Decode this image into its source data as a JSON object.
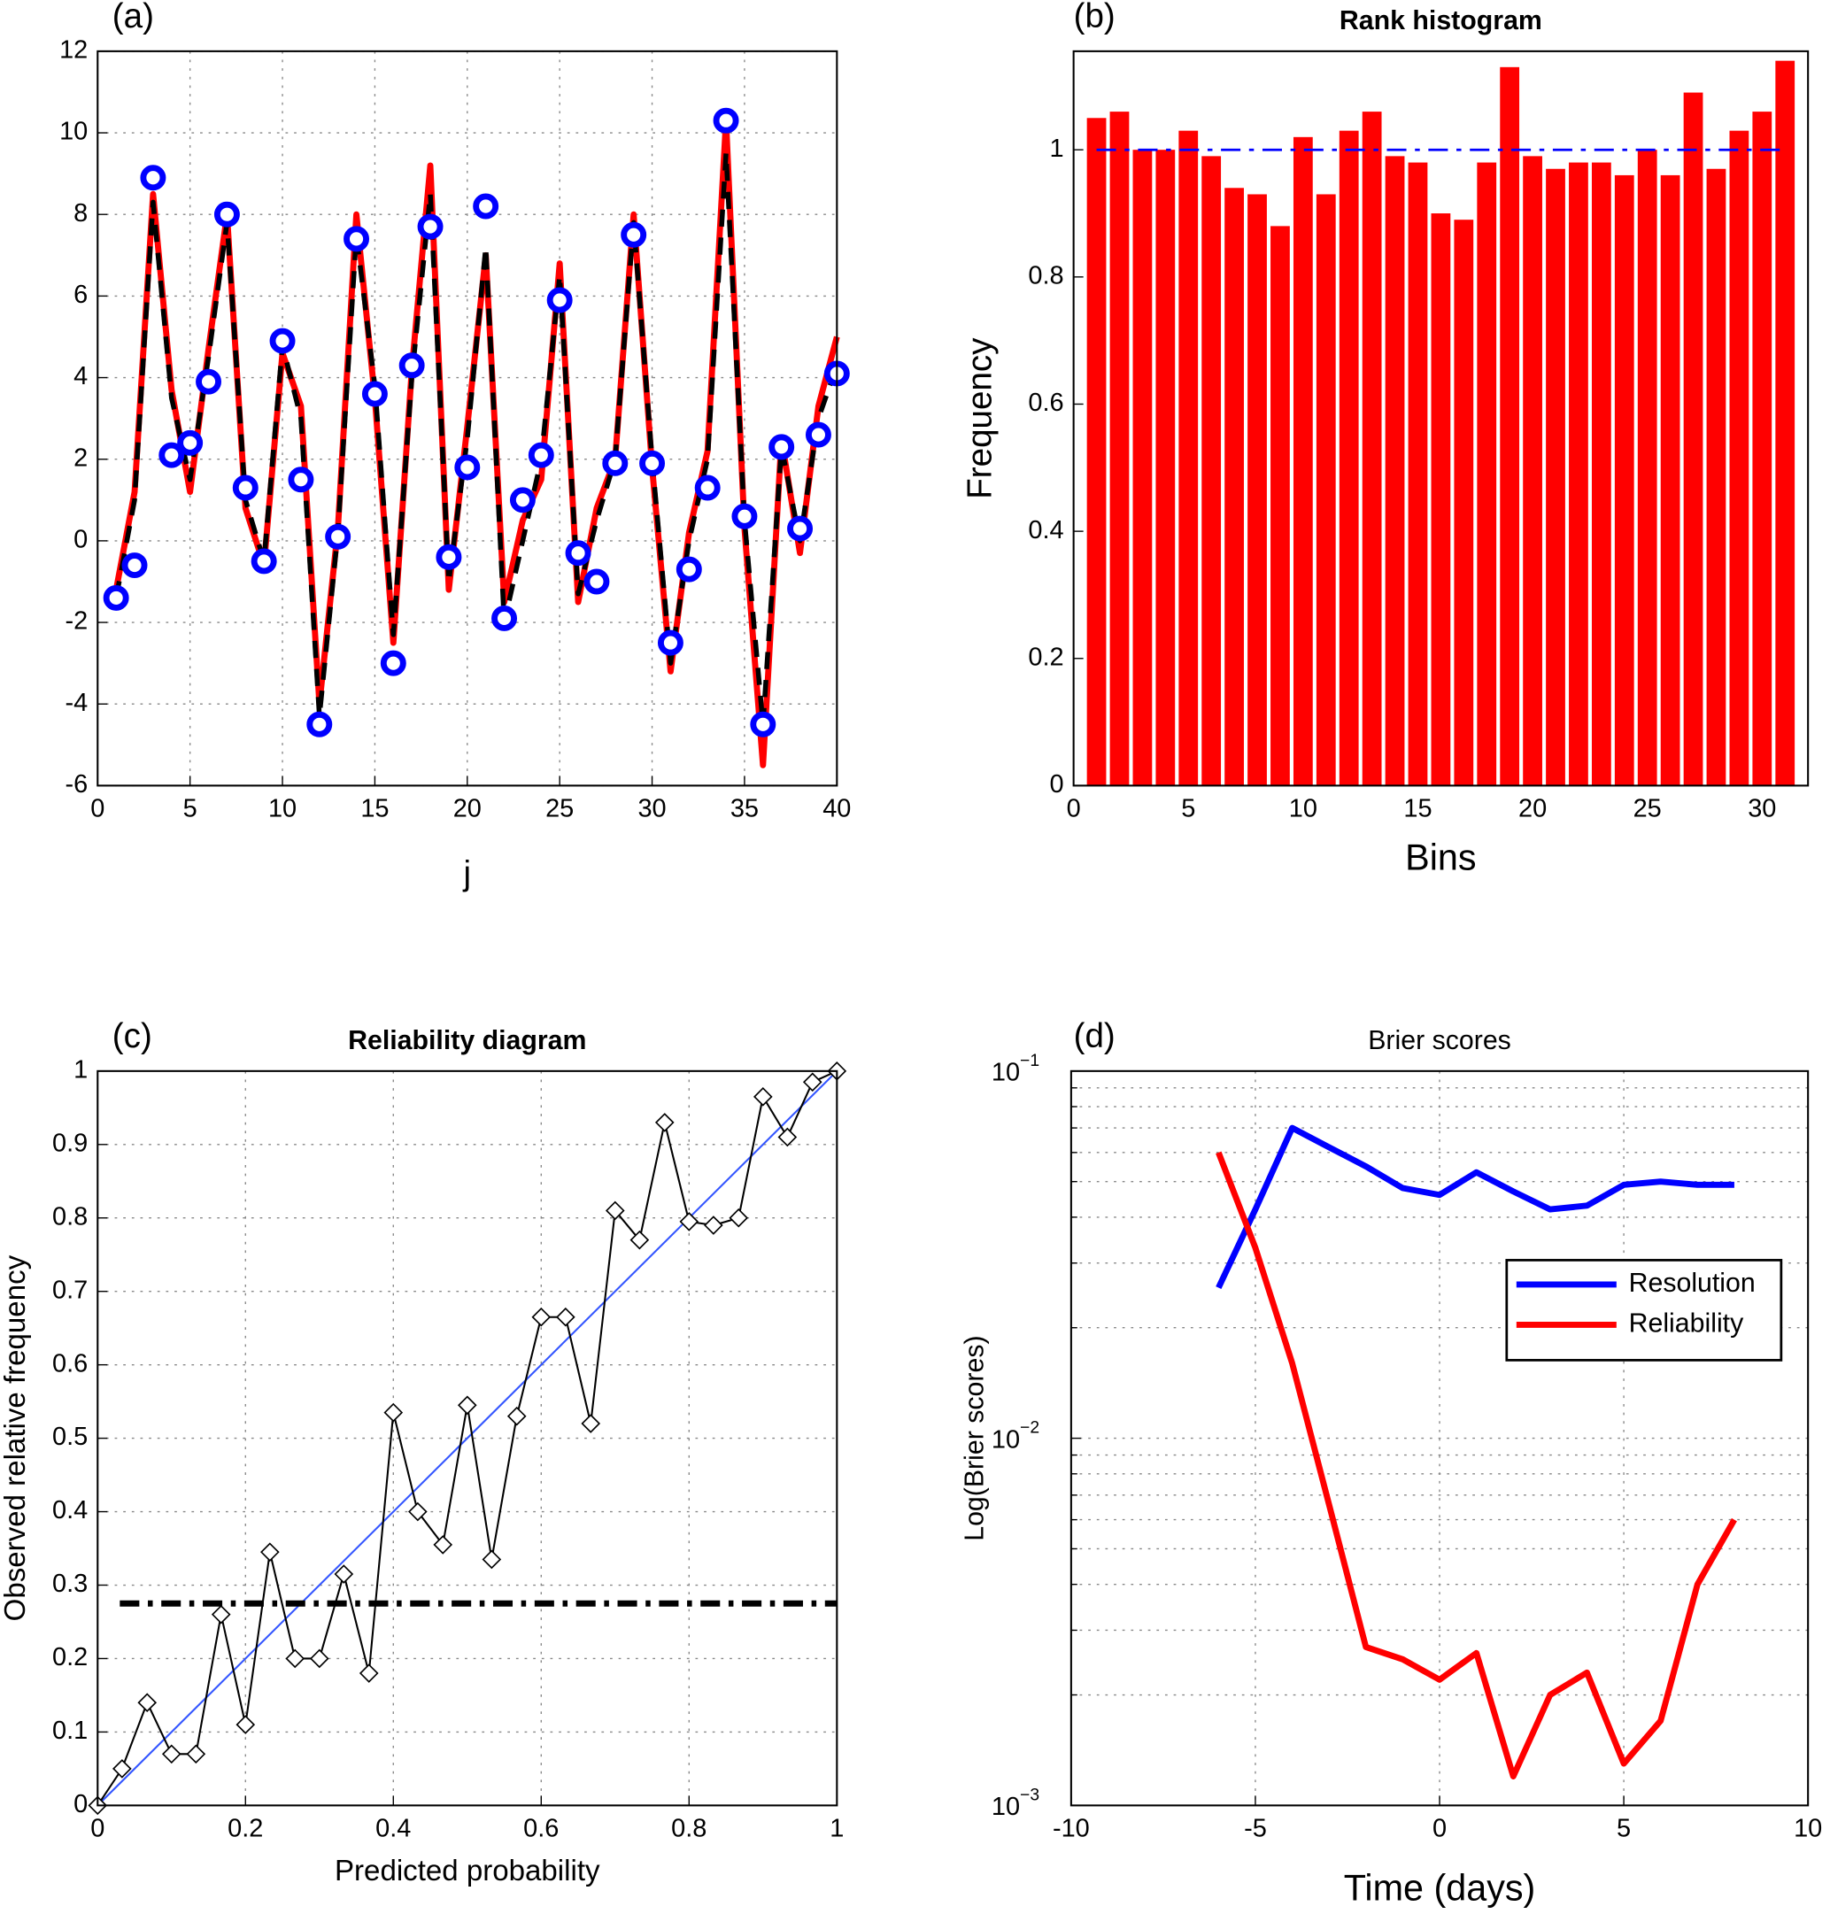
{
  "chart_data": [
    {
      "type": "line",
      "panel_label": "(a)",
      "xlabel": "j",
      "xlim": [
        0,
        40
      ],
      "ylim": [
        -6,
        12
      ],
      "xticks": [
        0,
        5,
        10,
        15,
        20,
        25,
        30,
        35,
        40
      ],
      "yticks": [
        -6,
        -4,
        -2,
        0,
        2,
        4,
        6,
        8,
        10,
        12
      ],
      "grid": true,
      "x": [
        1,
        2,
        3,
        4,
        5,
        6,
        7,
        8,
        9,
        10,
        11,
        12,
        13,
        14,
        15,
        16,
        17,
        18,
        19,
        20,
        21,
        22,
        23,
        24,
        25,
        26,
        27,
        28,
        29,
        30,
        31,
        32,
        33,
        34,
        35,
        36,
        37,
        38,
        39,
        40
      ],
      "series": [
        {
          "color": "#ff0000",
          "linestyle": "solid",
          "linewidth": 5,
          "values": [
            -1.2,
            1.2,
            8.5,
            3.7,
            1.2,
            4.7,
            8.0,
            0.8,
            -0.6,
            4.6,
            3.3,
            -4.0,
            0.3,
            8.0,
            3.5,
            -2.5,
            4.2,
            9.2,
            -1.2,
            2.8,
            7.0,
            -1.5,
            0.5,
            1.5,
            6.8,
            -1.5,
            0.8,
            2.0,
            8.0,
            1.8,
            -3.2,
            0.2,
            2.2,
            10.3,
            0.3,
            -5.5,
            2.5,
            -0.3,
            3.3,
            5.0
          ]
        },
        {
          "color": "#000000",
          "linestyle": "dashed",
          "linewidth": 4,
          "values": [
            -1.4,
            1.0,
            8.3,
            3.5,
            1.5,
            4.5,
            7.8,
            1.0,
            -0.5,
            4.8,
            3.0,
            -4.3,
            0.2,
            7.5,
            3.8,
            -2.3,
            4.0,
            8.5,
            -1.0,
            2.5,
            7.2,
            -2.0,
            0.0,
            2.0,
            6.5,
            -1.3,
            0.5,
            2.0,
            7.8,
            2.0,
            -3.0,
            0.0,
            2.0,
            9.5,
            0.5,
            -4.5,
            2.3,
            0.0,
            3.0,
            4.3
          ]
        },
        {
          "color": "#0000ff",
          "linestyle": "none",
          "marker": "circle",
          "values": [
            -1.4,
            -0.6,
            8.9,
            2.1,
            2.4,
            3.9,
            8.0,
            1.3,
            -0.5,
            4.9,
            1.5,
            -4.5,
            0.1,
            7.4,
            3.6,
            -3.0,
            4.3,
            7.7,
            -0.4,
            1.8,
            8.2,
            -1.9,
            1.0,
            2.1,
            5.9,
            -0.3,
            -1.0,
            1.9,
            7.5,
            1.9,
            -2.5,
            -0.7,
            1.3,
            10.3,
            0.6,
            -4.5,
            2.3,
            0.3,
            2.6,
            4.1
          ]
        }
      ]
    },
    {
      "type": "bar",
      "panel_label": "(b)",
      "title": "Rank histogram",
      "xlabel": "Bins",
      "ylabel": "Frequency",
      "xlim": [
        0,
        32
      ],
      "ylim": [
        0,
        1.155
      ],
      "xticks": [
        0,
        5,
        10,
        15,
        20,
        25,
        30
      ],
      "yticks": [
        0,
        0.2,
        0.4,
        0.6,
        0.8,
        1
      ],
      "grid": false,
      "color": "#ff0000",
      "x": [
        1,
        2,
        3,
        4,
        5,
        6,
        7,
        8,
        9,
        10,
        11,
        12,
        13,
        14,
        15,
        16,
        17,
        18,
        19,
        20,
        21,
        22,
        23,
        24,
        25,
        26,
        27,
        28,
        29,
        30,
        31
      ],
      "values": [
        1.05,
        1.06,
        1.0,
        1.0,
        1.03,
        0.99,
        0.94,
        0.93,
        0.88,
        1.02,
        0.93,
        1.03,
        1.06,
        0.99,
        0.98,
        0.9,
        0.89,
        0.98,
        1.13,
        0.99,
        0.97,
        0.98,
        0.98,
        0.96,
        1.0,
        0.96,
        1.09,
        0.97,
        1.03,
        1.06,
        1.14
      ],
      "reference": {
        "value": 1,
        "span": [
          1,
          31
        ],
        "color": "#0000ff",
        "linestyle": "dashdot"
      }
    },
    {
      "type": "line",
      "panel_label": "(c)",
      "title": "Reliability diagram",
      "xlabel": "Predicted probability",
      "ylabel": "Observed relative frequency",
      "xlim": [
        0,
        1
      ],
      "ylim": [
        0,
        1
      ],
      "xticks": [
        0,
        0.2,
        0.4,
        0.6,
        0.8,
        1
      ],
      "yticks": [
        0,
        0.1,
        0.2,
        0.3,
        0.4,
        0.5,
        0.6,
        0.7,
        0.8,
        0.9,
        1
      ],
      "grid": true,
      "series": [
        {
          "color": "#3355ff",
          "linestyle": "solid",
          "linewidth": 1.5,
          "x": [
            0,
            1
          ],
          "values": [
            0,
            1
          ]
        },
        {
          "color": "#000000",
          "linestyle": "dashdot",
          "linewidth": 5,
          "x": [
            0.03,
            1
          ],
          "values": [
            0.275,
            0.275
          ]
        },
        {
          "color": "#000000",
          "linestyle": "solid",
          "linewidth": 1.5,
          "marker": "diamond",
          "x": [
            0,
            0.033,
            0.067,
            0.1,
            0.133,
            0.167,
            0.2,
            0.233,
            0.267,
            0.3,
            0.333,
            0.367,
            0.4,
            0.433,
            0.467,
            0.5,
            0.533,
            0.567,
            0.6,
            0.633,
            0.667,
            0.7,
            0.733,
            0.767,
            0.8,
            0.833,
            0.867,
            0.9,
            0.933,
            0.967,
            1
          ],
          "values": [
            0,
            0.05,
            0.14,
            0.07,
            0.07,
            0.26,
            0.11,
            0.345,
            0.2,
            0.2,
            0.315,
            0.18,
            0.535,
            0.4,
            0.355,
            0.545,
            0.335,
            0.53,
            0.665,
            0.665,
            0.52,
            0.81,
            0.77,
            0.93,
            0.795,
            0.79,
            0.8,
            0.965,
            0.91,
            0.985,
            1
          ]
        }
      ]
    },
    {
      "type": "line",
      "panel_label": "(d)",
      "title": "Brier scores",
      "xlabel": "Time (days)",
      "ylabel": "Log(Brier scores)",
      "xlim": [
        -10,
        10
      ],
      "ylim": [
        0.001,
        0.1
      ],
      "logy": true,
      "xticks": [
        -10,
        -5,
        0,
        5,
        10
      ],
      "yticks": [
        {
          "value": 0.001,
          "label": "10",
          "exponent": "−3"
        },
        {
          "value": 0.01,
          "label": "10",
          "exponent": "−2"
        },
        {
          "value": 0.1,
          "label": "10",
          "exponent": "−1"
        }
      ],
      "yminorticks": [
        0.002,
        0.003,
        0.004,
        0.005,
        0.006,
        0.007,
        0.008,
        0.009,
        0.02,
        0.03,
        0.04,
        0.05,
        0.06,
        0.07,
        0.08,
        0.09
      ],
      "grid": true,
      "legend": "right",
      "series": [
        {
          "name": "Resolution",
          "color": "#0000ff",
          "linestyle": "solid",
          "linewidth": 5,
          "x": [
            -6,
            -5,
            -4,
            -3,
            -2,
            -1,
            0,
            1,
            2,
            3,
            4,
            5,
            6,
            7,
            8
          ],
          "values": [
            0.0257,
            0.042,
            0.07,
            0.062,
            0.055,
            0.048,
            0.046,
            0.053,
            0.047,
            0.042,
            0.043,
            0.049,
            0.05,
            0.049,
            0.049
          ]
        },
        {
          "name": "Reliability",
          "color": "#ff0000",
          "linestyle": "solid",
          "linewidth": 5,
          "x": [
            -6,
            -5,
            -4,
            -3,
            -2,
            -1,
            0,
            1,
            2,
            3,
            4,
            5,
            6,
            7,
            8
          ],
          "values": [
            0.06,
            0.033,
            0.016,
            0.0066,
            0.0027,
            0.0025,
            0.0022,
            0.0026,
            0.0012,
            0.002,
            0.0023,
            0.0013,
            0.0017,
            0.004,
            0.006
          ]
        }
      ]
    }
  ]
}
